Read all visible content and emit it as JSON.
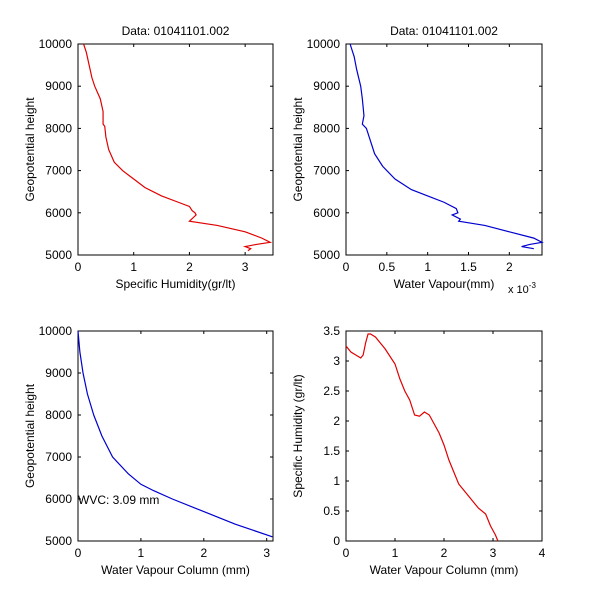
{
  "chart_data": [
    {
      "type": "line",
      "title": "Data: 01041101.002",
      "xlabel": "Specific Humidity(gr/lt)",
      "ylabel": "Geopotential height",
      "xlim": [
        0,
        3.5
      ],
      "ylim": [
        5000,
        10000
      ],
      "xticks": [
        0,
        1,
        2,
        3
      ],
      "yticks": [
        5000,
        6000,
        7000,
        8000,
        9000,
        10000
      ],
      "exponent_label": "",
      "annotation": "",
      "grid": false,
      "series": [
        {
          "color": "#e00000",
          "points": [
            [
              0.1,
              10000
            ],
            [
              0.15,
              9800
            ],
            [
              0.2,
              9500
            ],
            [
              0.25,
              9200
            ],
            [
              0.3,
              9000
            ],
            [
              0.4,
              8700
            ],
            [
              0.45,
              8400
            ],
            [
              0.45,
              8200
            ],
            [
              0.45,
              8100
            ],
            [
              0.48,
              8050
            ],
            [
              0.5,
              7800
            ],
            [
              0.55,
              7500
            ],
            [
              0.65,
              7200
            ],
            [
              0.8,
              7000
            ],
            [
              1.0,
              6800
            ],
            [
              1.2,
              6600
            ],
            [
              1.5,
              6400
            ],
            [
              1.8,
              6250
            ],
            [
              2.0,
              6150
            ],
            [
              2.05,
              6050
            ],
            [
              2.1,
              6000
            ],
            [
              2.12,
              5950
            ],
            [
              2.0,
              5800
            ],
            [
              2.5,
              5700
            ],
            [
              3.0,
              5550
            ],
            [
              3.3,
              5400
            ],
            [
              3.45,
              5300
            ],
            [
              3.2,
              5250
            ],
            [
              3.0,
              5200
            ],
            [
              3.1,
              5150
            ],
            [
              3.05,
              5100
            ]
          ]
        }
      ]
    },
    {
      "type": "line",
      "title": "Data: 01041101.002",
      "xlabel": "Water Vapour(mm)",
      "ylabel": "Geopotential height",
      "xlim": [
        0,
        2.4
      ],
      "ylim": [
        5000,
        10000
      ],
      "xticks": [
        0,
        0.5,
        1,
        1.5,
        2
      ],
      "yticks": [
        5000,
        6000,
        7000,
        8000,
        9000,
        10000
      ],
      "exponent_label": "x 10",
      "exponent_power": "-3",
      "annotation": "",
      "grid": false,
      "series": [
        {
          "color": "#0000d0",
          "points": [
            [
              0.05,
              10000
            ],
            [
              0.1,
              9700
            ],
            [
              0.13,
              9400
            ],
            [
              0.18,
              9000
            ],
            [
              0.2,
              8700
            ],
            [
              0.22,
              8300
            ],
            [
              0.2,
              8100
            ],
            [
              0.25,
              8000
            ],
            [
              0.3,
              7700
            ],
            [
              0.35,
              7400
            ],
            [
              0.45,
              7100
            ],
            [
              0.6,
              6800
            ],
            [
              0.8,
              6550
            ],
            [
              1.0,
              6400
            ],
            [
              1.2,
              6250
            ],
            [
              1.35,
              6100
            ],
            [
              1.37,
              6000
            ],
            [
              1.3,
              5950
            ],
            [
              1.4,
              5850
            ],
            [
              1.38,
              5800
            ],
            [
              1.7,
              5700
            ],
            [
              2.0,
              5550
            ],
            [
              2.3,
              5400
            ],
            [
              2.4,
              5300
            ],
            [
              2.25,
              5250
            ],
            [
              2.15,
              5200
            ],
            [
              2.3,
              5150
            ]
          ]
        }
      ]
    },
    {
      "type": "line",
      "title": "",
      "xlabel": "Water Vapour Column (mm)",
      "ylabel": "Geopotential height",
      "xlim": [
        0,
        3.1
      ],
      "ylim": [
        5000,
        10000
      ],
      "xticks": [
        0,
        1,
        2,
        3
      ],
      "yticks": [
        5000,
        6000,
        7000,
        8000,
        9000,
        10000
      ],
      "exponent_label": "",
      "annotation": "WVC: 3.09 mm",
      "annotation_color": "#e00000",
      "grid": false,
      "series": [
        {
          "color": "#0000d0",
          "points": [
            [
              0,
              10000
            ],
            [
              0.03,
              9500
            ],
            [
              0.08,
              9000
            ],
            [
              0.15,
              8500
            ],
            [
              0.25,
              8000
            ],
            [
              0.38,
              7500
            ],
            [
              0.55,
              7000
            ],
            [
              0.8,
              6600
            ],
            [
              1.0,
              6350
            ],
            [
              1.2,
              6200
            ],
            [
              1.5,
              6000
            ],
            [
              2.0,
              5700
            ],
            [
              2.5,
              5400
            ],
            [
              3.09,
              5100
            ]
          ]
        }
      ]
    },
    {
      "type": "line",
      "title": "",
      "xlabel": "Water Vapour Column (mm)",
      "ylabel": "Specific Humidity (gr/lt)",
      "xlim": [
        0,
        4
      ],
      "ylim": [
        0,
        3.5
      ],
      "xticks": [
        0,
        1,
        2,
        3,
        4
      ],
      "yticks": [
        0,
        0.5,
        1,
        1.5,
        2,
        2.5,
        3,
        3.5
      ],
      "exponent_label": "",
      "annotation": "",
      "grid": false,
      "series": [
        {
          "color": "#e00000",
          "points": [
            [
              0,
              3.25
            ],
            [
              0.1,
              3.15
            ],
            [
              0.2,
              3.1
            ],
            [
              0.3,
              3.05
            ],
            [
              0.35,
              3.1
            ],
            [
              0.4,
              3.3
            ],
            [
              0.45,
              3.45
            ],
            [
              0.5,
              3.45
            ],
            [
              0.6,
              3.4
            ],
            [
              0.8,
              3.2
            ],
            [
              1.0,
              2.95
            ],
            [
              1.1,
              2.7
            ],
            [
              1.2,
              2.5
            ],
            [
              1.3,
              2.35
            ],
            [
              1.4,
              2.1
            ],
            [
              1.5,
              2.08
            ],
            [
              1.6,
              2.15
            ],
            [
              1.7,
              2.1
            ],
            [
              1.8,
              1.95
            ],
            [
              1.9,
              1.8
            ],
            [
              2.0,
              1.6
            ],
            [
              2.1,
              1.35
            ],
            [
              2.2,
              1.15
            ],
            [
              2.3,
              0.95
            ],
            [
              2.5,
              0.75
            ],
            [
              2.7,
              0.55
            ],
            [
              2.85,
              0.45
            ],
            [
              2.95,
              0.25
            ],
            [
              3.05,
              0.1
            ],
            [
              3.1,
              0
            ]
          ]
        }
      ]
    }
  ]
}
